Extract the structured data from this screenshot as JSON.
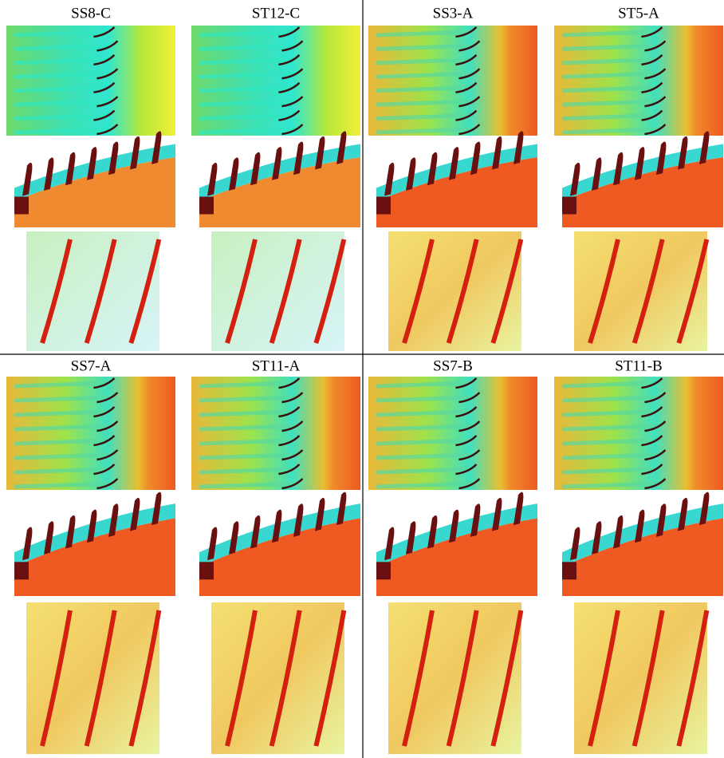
{
  "panels": [
    {
      "label": "SS8-C"
    },
    {
      "label": "ST12-C"
    },
    {
      "label": "SS3-A"
    },
    {
      "label": "ST5-A"
    },
    {
      "label": "SS7-A"
    },
    {
      "label": "ST11-A"
    },
    {
      "label": "SS7-B"
    },
    {
      "label": "ST11-B"
    }
  ]
}
